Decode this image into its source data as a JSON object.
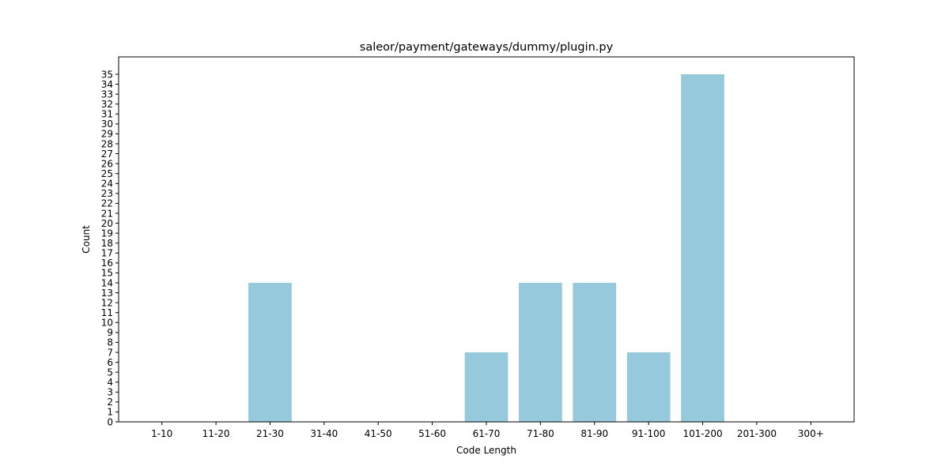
{
  "chart_data": {
    "type": "bar",
    "title": "saleor/payment/gateways/dummy/plugin.py",
    "xlabel": "Code Length",
    "ylabel": "Count",
    "categories": [
      "1-10",
      "11-20",
      "21-30",
      "31-40",
      "41-50",
      "51-60",
      "61-70",
      "71-80",
      "81-90",
      "91-100",
      "101-200",
      "201-300",
      "300+"
    ],
    "values": [
      0,
      0,
      14,
      0,
      0,
      0,
      7,
      14,
      14,
      7,
      35,
      0,
      0
    ],
    "ylim": [
      0,
      36.75
    ],
    "yticks": [
      0,
      1,
      2,
      3,
      4,
      5,
      6,
      7,
      8,
      9,
      10,
      11,
      12,
      13,
      14,
      15,
      16,
      17,
      18,
      19,
      20,
      21,
      22,
      23,
      24,
      25,
      26,
      27,
      28,
      29,
      30,
      31,
      32,
      33,
      34,
      35
    ],
    "bar_color": "#96c9dc",
    "grid": false,
    "legend": false
  }
}
